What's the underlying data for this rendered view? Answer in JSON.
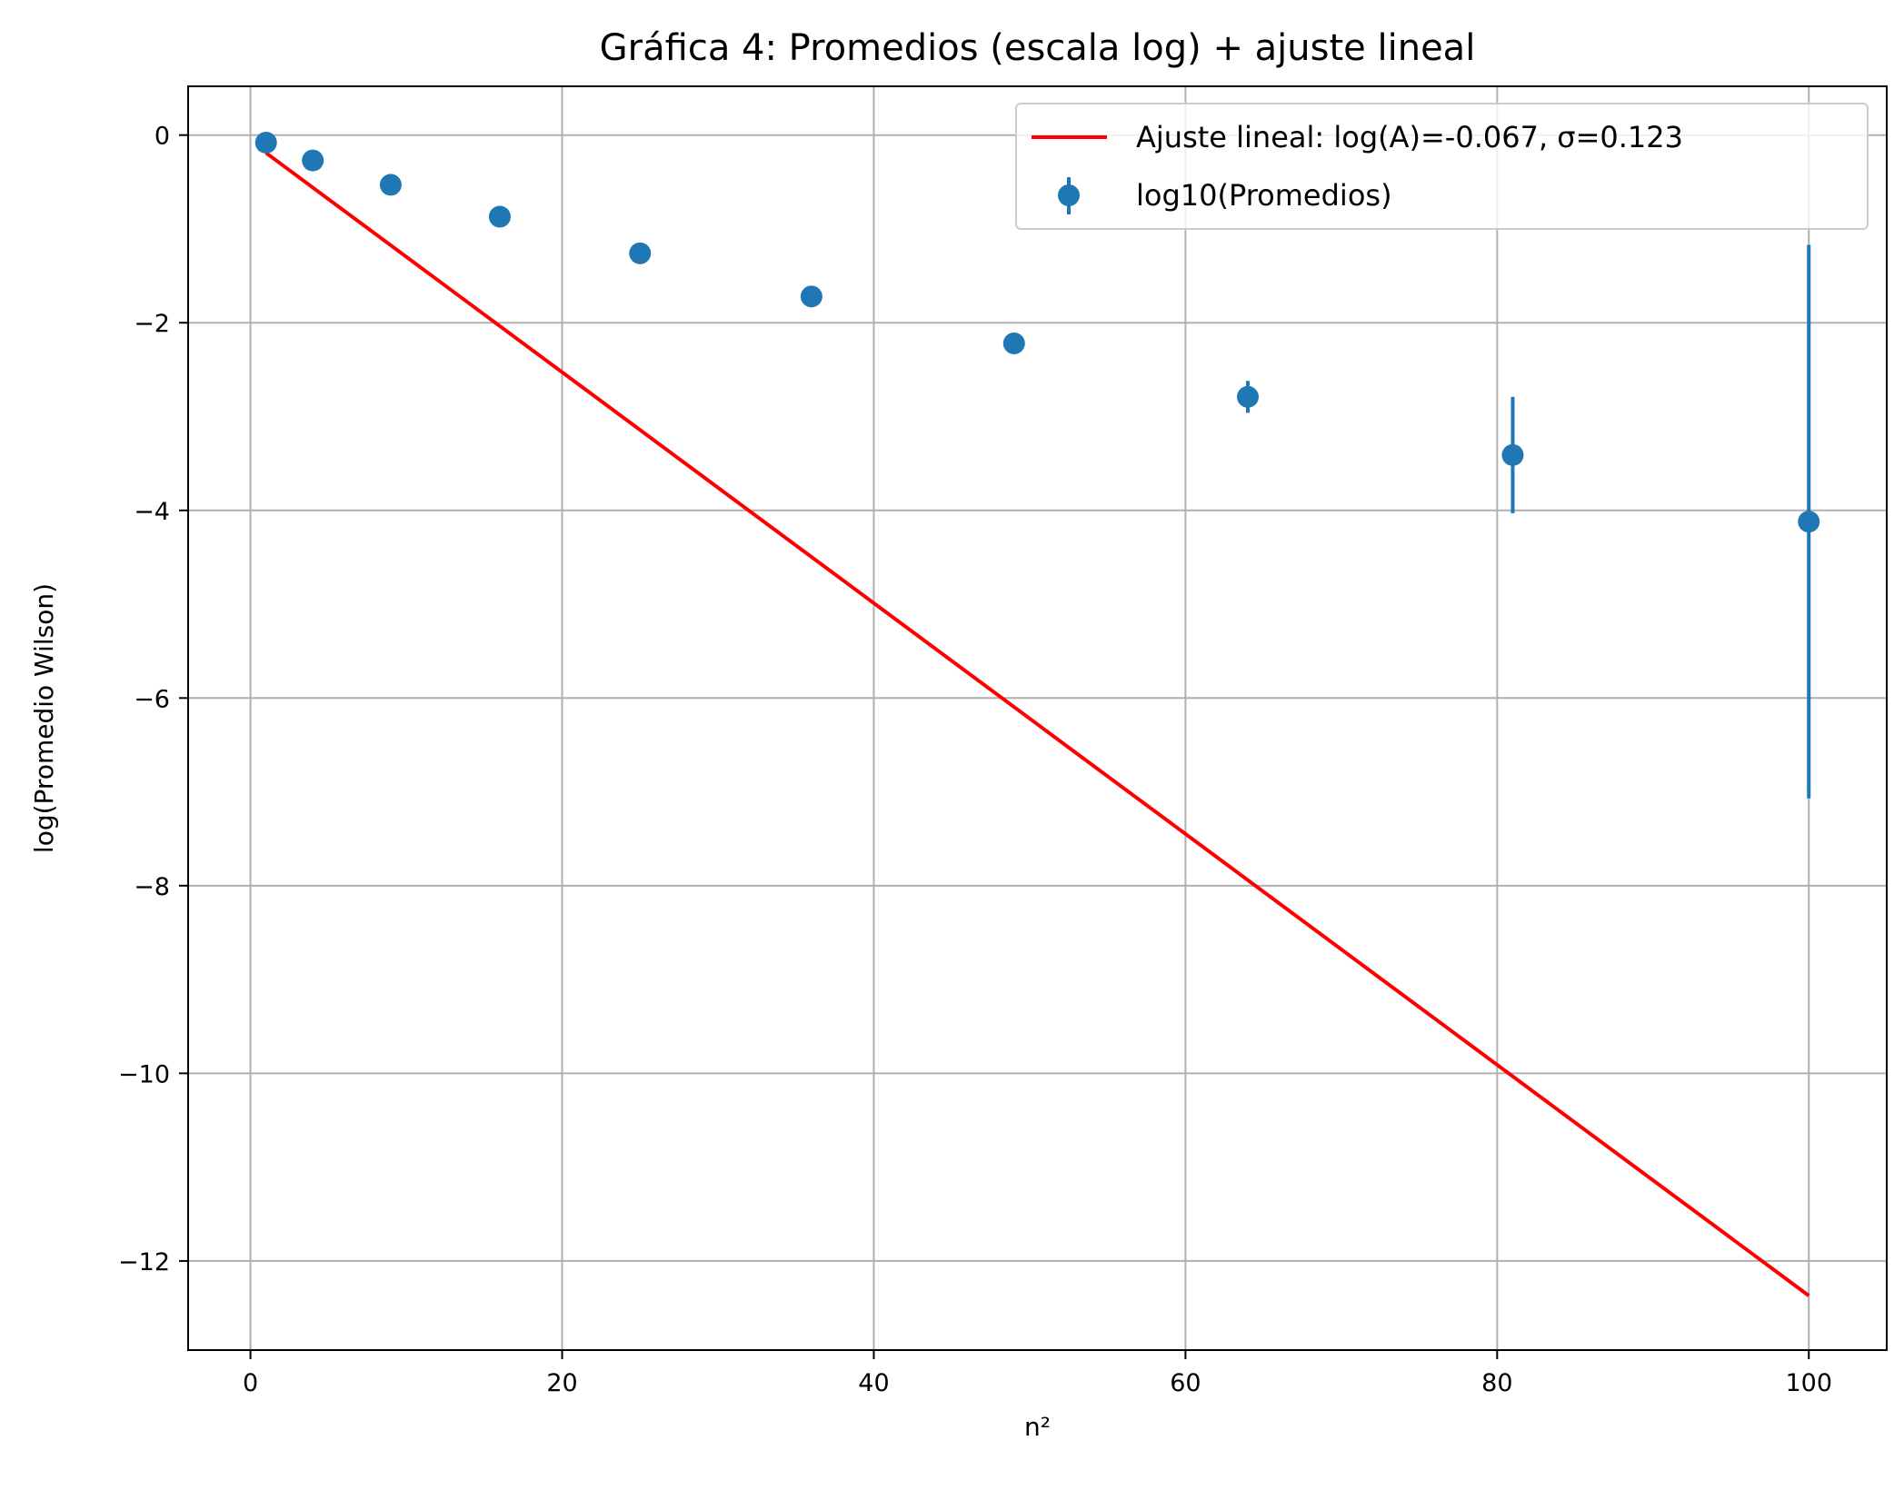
{
  "chart_data": {
    "type": "scatter",
    "title": "Gráfica 4: Promedios (escala log) + ajuste lineal",
    "xlabel": "n²",
    "ylabel": "log(Promedio Wilson)",
    "xlim": [
      -4,
      105
    ],
    "ylim": [
      -12.95,
      0.52
    ],
    "xticks": [
      0,
      20,
      40,
      60,
      80,
      100
    ],
    "yticks": [
      0,
      -2,
      -4,
      -6,
      -8,
      -10,
      -12
    ],
    "xtick_labels": [
      "0",
      "20",
      "40",
      "60",
      "80",
      "100"
    ],
    "ytick_labels": [
      "0",
      "−2",
      "−4",
      "−6",
      "−8",
      "−10",
      "−12"
    ],
    "grid": true,
    "legend_position": "top-right",
    "series": [
      {
        "name": "log10(Promedios)",
        "kind": "errorbar",
        "color": "#1f77b4",
        "x": [
          1,
          4,
          9,
          16,
          25,
          36,
          49,
          64,
          81,
          100
        ],
        "y": [
          -0.08,
          -0.27,
          -0.53,
          -0.87,
          -1.26,
          -1.72,
          -2.22,
          -2.79,
          -3.41,
          -4.12
        ],
        "yerr": [
          0.02,
          0.02,
          0.02,
          0.03,
          0.04,
          0.05,
          0.07,
          0.17,
          0.62,
          2.95
        ]
      },
      {
        "name": "Ajuste lineal: log(A)=-0.067, σ=0.123",
        "kind": "line",
        "color": "#ff0000",
        "x": [
          1,
          100
        ],
        "y": [
          -0.19,
          -12.37
        ]
      }
    ]
  }
}
